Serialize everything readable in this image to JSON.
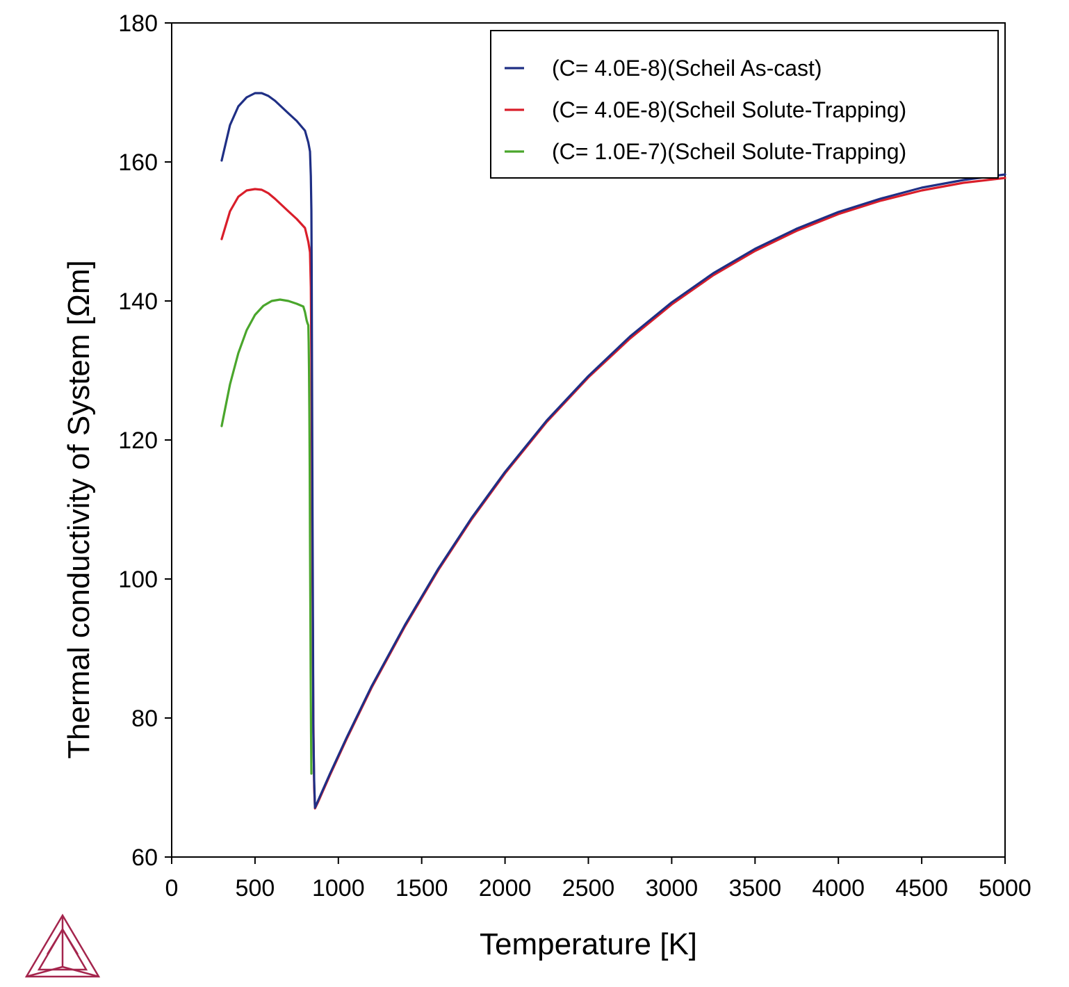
{
  "chart_data": {
    "type": "line",
    "xlabel": "Temperature [K]",
    "ylabel": "Thermal conductivity of System [Ωm]",
    "xlim": [
      0,
      5000
    ],
    "ylim": [
      60,
      180
    ],
    "xticks": [
      0,
      500,
      1000,
      1500,
      2000,
      2500,
      3000,
      3500,
      4000,
      4500,
      5000
    ],
    "yticks": [
      60,
      80,
      100,
      120,
      140,
      160,
      180
    ],
    "grid": false,
    "legend_position": "top-right",
    "series": [
      {
        "name": "(C= 4.0E-8)(Scheil As-cast)",
        "color": "#1f2f85",
        "x": [
          300,
          350,
          400,
          450,
          500,
          540,
          580,
          620,
          660,
          700,
          750,
          800,
          820,
          830,
          835,
          838,
          840,
          842,
          845,
          848,
          850,
          855,
          860,
          880,
          950,
          1050,
          1200,
          1400,
          1600,
          1800,
          2000,
          2250,
          2500,
          2750,
          3000,
          3250,
          3500,
          3750,
          4000,
          4250,
          4500,
          4750,
          5000
        ],
        "y": [
          160.2,
          165.3,
          168.0,
          169.3,
          169.9,
          169.9,
          169.5,
          168.8,
          167.9,
          167.0,
          165.9,
          164.5,
          162.8,
          161.5,
          158.0,
          153.0,
          145.0,
          130.0,
          110.0,
          90.0,
          78.0,
          71.0,
          67.1,
          68.2,
          72.0,
          77.2,
          84.6,
          93.4,
          101.5,
          108.8,
          115.4,
          122.8,
          129.2,
          134.9,
          139.8,
          144.0,
          147.5,
          150.4,
          152.8,
          154.7,
          156.3,
          157.4,
          158.2
        ]
      },
      {
        "name": "(C= 4.0E-8)(Scheil Solute-Trapping)",
        "color": "#d91e2a",
        "x": [
          300,
          350,
          400,
          450,
          500,
          540,
          580,
          620,
          660,
          700,
          750,
          800,
          820,
          830,
          835,
          840,
          845,
          850,
          855,
          860,
          880,
          950,
          1050,
          1200,
          1400,
          1600,
          1800,
          2000,
          2250,
          2500,
          2750,
          3000,
          3250,
          3500,
          3750,
          4000,
          4250,
          4500,
          4750,
          5000
        ],
        "y": [
          148.9,
          152.9,
          155.0,
          155.9,
          156.1,
          156.0,
          155.5,
          154.7,
          153.8,
          152.9,
          151.8,
          150.5,
          148.5,
          147.0,
          142.0,
          125.0,
          100.0,
          80.0,
          70.0,
          67.0,
          68.0,
          71.8,
          77.0,
          84.4,
          93.2,
          101.3,
          108.6,
          115.2,
          122.6,
          129.0,
          134.6,
          139.5,
          143.7,
          147.2,
          150.1,
          152.5,
          154.4,
          155.9,
          157.0,
          157.7
        ]
      },
      {
        "name": "(C= 1.0E-7)(Scheil Solute-Trapping)",
        "color": "#4aa62c",
        "x": [
          300,
          350,
          400,
          450,
          500,
          550,
          600,
          650,
          700,
          750,
          790,
          800,
          810,
          815,
          820,
          822,
          824,
          826,
          828,
          830,
          832,
          834,
          836,
          838
        ],
        "y": [
          122.0,
          128.0,
          132.5,
          135.8,
          138.0,
          139.3,
          140.0,
          140.2,
          140.0,
          139.6,
          139.2,
          138.4,
          137.2,
          136.8,
          136.5,
          134.0,
          130.0,
          124.0,
          116.0,
          106.0,
          96.0,
          86.0,
          78.0,
          72.0
        ]
      }
    ]
  },
  "logo": {
    "name": "thermo-calc-triangle-logo",
    "color": "#a4254d"
  }
}
